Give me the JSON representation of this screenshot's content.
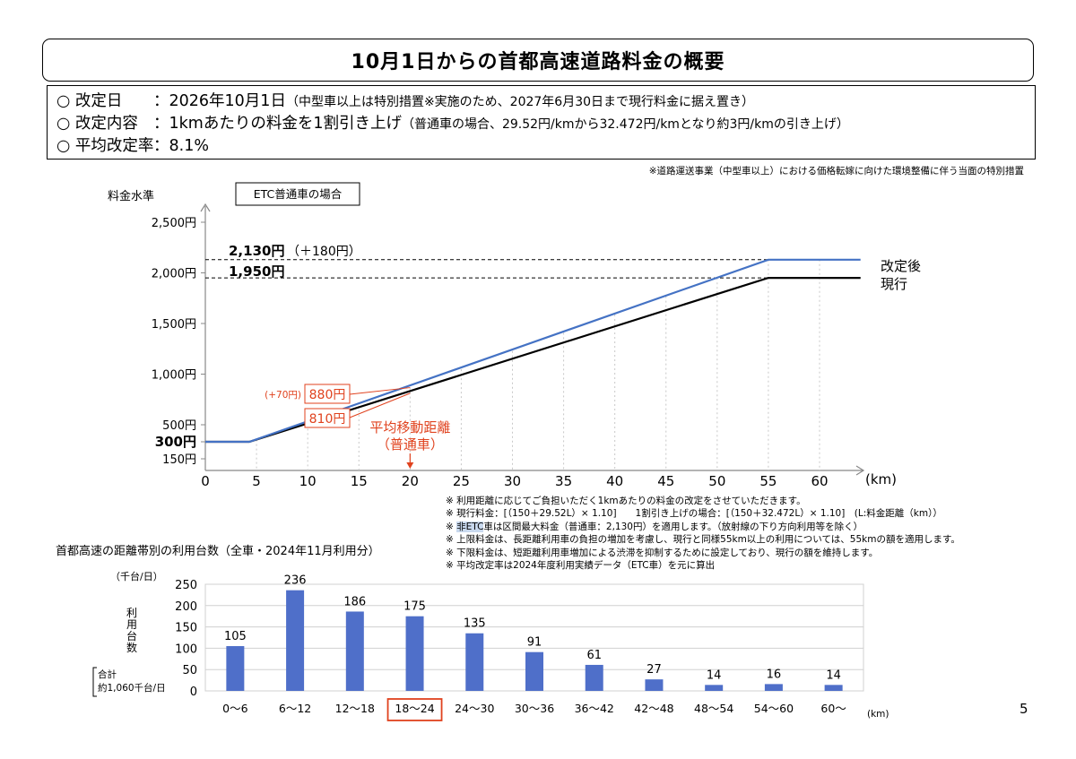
{
  "header": {
    "title": "10月1日からの首都高速道路料金の概要"
  },
  "info": [
    {
      "label": "○ 改定日",
      "sep": "：",
      "main": "2026年10月1日",
      "small": "（中型車以上は特別措置※実施のため、2027年6月30日まで現行料金に据え置き）"
    },
    {
      "label": "○ 改定内容",
      "sep": "：",
      "main": "1kmあたりの料金を1割引き上げ",
      "small": "（普通車の場合、29.52円/kmから32.472円/kmとなり約3円/kmの引き上げ）"
    },
    {
      "label": "○ 平均改定率",
      "sep": "：",
      "main": "8.1%",
      "small": ""
    }
  ],
  "top_note": "※道路運送事業（中型車以上）における価格転嫁に向けた環境整備に伴う当面の特別措置",
  "notes": [
    "※ 利用距離に応じてご負担いただく1kmあたりの料金の改定をさせていただきます。",
    "※ 現行料金：[（150＋29.52L）× 1.10]　　1割引き上げの場合：[（150＋32.472L）× 1.10]　(L:料金距離（km））",
    "※ 非ETC車は区間最大料金（普通車：2,130円）を適用します。（放射線の下り方向利用等を除く）",
    "※ 上限料金は、長距離利用車の負担の増加を考慮し、現行と同様55km以上の利用については、55kmの額を適用します。",
    "※ 下限料金は、短距離利用車増加による渋滞を抑制するために設定しており、現行の額を維持します。",
    "※ 平均改定率は2024年度利用実績データ（ETC車）を元に算出"
  ],
  "notes_highlight": "非ETC",
  "page_number": "5",
  "chart_data": [
    {
      "type": "line",
      "ylabel": "料金水準",
      "xlabel": "(km)",
      "box_label": "ETC普通車の場合",
      "x_ticks": [
        "0",
        "5",
        "10",
        "15",
        "20",
        "25",
        "30",
        "35",
        "40",
        "45",
        "50",
        "55",
        "60"
      ],
      "y_ticks": [
        {
          "value": 150,
          "label": "150円"
        },
        {
          "value": 300,
          "label": "300円"
        },
        {
          "value": 500,
          "label": "500円"
        },
        {
          "value": 1000,
          "label": "1,000円"
        },
        {
          "value": 1500,
          "label": "1,500円"
        },
        {
          "value": 2000,
          "label": "2,000円"
        },
        {
          "value": 2500,
          "label": "2,500円"
        }
      ],
      "xlim": [
        0,
        64
      ],
      "ylim": [
        150,
        2500
      ],
      "series": [
        {
          "name": "改定後",
          "color": "#4472c4",
          "points": [
            [
              0,
              300
            ],
            [
              4.3,
              300
            ],
            [
              55,
              2130
            ],
            [
              64,
              2130
            ]
          ]
        },
        {
          "name": "現行",
          "color": "#000000",
          "points": [
            [
              0,
              300
            ],
            [
              4.3,
              300
            ],
            [
              55,
              1950
            ],
            [
              64,
              1950
            ]
          ]
        }
      ],
      "reference_labels": [
        {
          "value": 2130,
          "text": "2,130円",
          "extra": "（＋180円）"
        },
        {
          "value": 1950,
          "text": "1,950円",
          "extra": ""
        }
      ],
      "callouts": [
        {
          "text": "880円",
          "prefix": "(+70円)",
          "x": 20,
          "y": 880
        },
        {
          "text": "810円",
          "prefix": "",
          "x": 20,
          "y": 810
        }
      ],
      "marker": {
        "x": 20,
        "line1": "平均移動距離",
        "line2": "（普通車）",
        "color": "#e0421e"
      }
    },
    {
      "type": "bar",
      "title": "首都高速の距離帯別の利用台数（全車・2024年11月利用分）",
      "unit": "（千台/日）",
      "ylabel": "利用台数",
      "total_label_1": "合計",
      "total_label_2": "約1,060千台/日",
      "xlabel": "(km)",
      "categories": [
        "0～6",
        "6～12",
        "12～18",
        "18～24",
        "24～30",
        "30～36",
        "36～42",
        "42～48",
        "48～54",
        "54～60",
        "60～"
      ],
      "values": [
        105,
        236,
        186,
        175,
        135,
        91,
        61,
        27,
        14,
        16,
        14
      ],
      "ylim": [
        0,
        250
      ],
      "y_ticks": [
        "0",
        "50",
        "100",
        "150",
        "200",
        "250"
      ],
      "highlight_category": "18～24",
      "bar_color": "#4f6fc9",
      "highlight_color": "#e0421e"
    }
  ]
}
